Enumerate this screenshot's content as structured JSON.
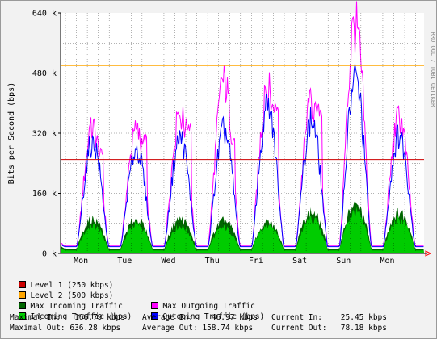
{
  "chart_data": {
    "type": "area",
    "ylabel": "Bits per Second (bps)",
    "ylim": [
      0,
      640000
    ],
    "yticks": [
      0,
      160000,
      320000,
      480000,
      640000
    ],
    "ytick_labels": [
      "0 k",
      "160 k",
      "320 k",
      "480 k",
      "640 k"
    ],
    "x_day_labels": [
      "Mon",
      "Tue",
      "Wed",
      "Thu",
      "Fri",
      "Sat",
      "Sun",
      "Mon"
    ],
    "watermark": "RRDTOOL / TOBI OETIKER",
    "thresholds": [
      {
        "name": "Level 1 (250 kbps)",
        "value": 250000,
        "color": "#cc0000"
      },
      {
        "name": "Level 2 (500 kbps)",
        "value": 500000,
        "color": "#ffa500"
      }
    ],
    "daily_peaks": {
      "days": [
        "Sun",
        "Mon",
        "Tue",
        "Wed",
        "Thu",
        "Fri",
        "Sat",
        "Sun",
        "Mon"
      ],
      "max_incoming": [
        30000,
        100000,
        100000,
        100000,
        95000,
        90000,
        120000,
        140000,
        120000
      ],
      "max_outgoing": [
        50000,
        350000,
        340000,
        390000,
        480000,
        460000,
        420000,
        636000,
        380000
      ],
      "max_outgoing_late_hump": [
        0,
        280000,
        320000,
        360000,
        320000,
        410000,
        400000,
        0,
        0
      ],
      "incoming": [
        20000,
        80000,
        85000,
        80000,
        75000,
        85000,
        100000,
        120000,
        100000
      ],
      "outgoing": [
        40000,
        320000,
        300000,
        330000,
        350000,
        420000,
        380000,
        500000,
        340000
      ]
    },
    "series": [
      {
        "name": "Max Incoming Traffic",
        "color": "#006600"
      },
      {
        "name": "Incoming Traffic (bps)",
        "color": "#00cc00"
      },
      {
        "name": "Max Outgoing Traffic",
        "color": "#ff00ff"
      },
      {
        "name": "Outgoing Traffic (bps)",
        "color": "#0000ff"
      }
    ],
    "colors": {
      "plot_bg": "#ffffff",
      "grid": "#000000",
      "axis": "#000000",
      "arrow": "#ff0000"
    }
  },
  "legend": {
    "level1": "Level 1 (250 kbps)",
    "level2": "Level 2 (500 kbps)",
    "max_incoming": "Max Incoming Traffic",
    "max_outgoing": "Max Outgoing Traffic",
    "incoming": "Incoming Traffic (bps)",
    "outgoing": "Outgoing Traffic (bps)"
  },
  "stats": {
    "maximal_in": "Maximal In:   166.79 kbps",
    "maximal_out": "Maximal Out: 636.28 kbps",
    "average_in": "Average In:    46.97 kbps",
    "average_out": "Average Out: 158.74 kbps",
    "current_in": "Current In:    25.45 kbps",
    "current_out": "Current Out:   78.18 kbps"
  }
}
